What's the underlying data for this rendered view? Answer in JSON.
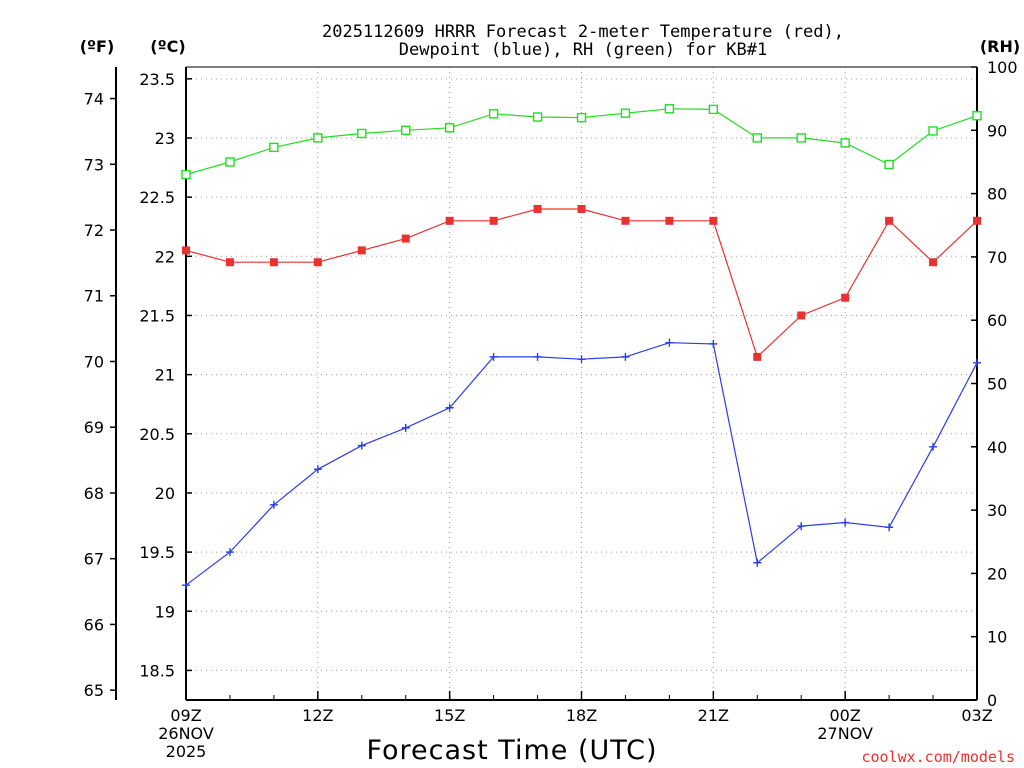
{
  "chart_data": {
    "type": "line",
    "title_line1": "2025112609 HRRR Forecast 2-meter Temperature (red),",
    "title_line2": "Dewpoint (blue), RH (green) for KB#1",
    "xlabel": "Forecast Time (UTC)",
    "credit": "coolwx.com/models",
    "axis_labels": {
      "fahrenheit": "(ºF)",
      "celsius": "(ºC)",
      "rh": "(RH)"
    },
    "x": [
      0,
      1,
      2,
      3,
      4,
      5,
      6,
      7,
      8,
      9,
      10,
      11,
      12,
      13,
      14,
      15,
      16,
      17,
      18
    ],
    "xlim": [
      0,
      18
    ],
    "x_ticks": [
      {
        "x": 0,
        "lines": [
          "09Z",
          "26NOV",
          "2025"
        ]
      },
      {
        "x": 3,
        "lines": [
          "12Z"
        ]
      },
      {
        "x": 6,
        "lines": [
          "15Z"
        ]
      },
      {
        "x": 9,
        "lines": [
          "18Z"
        ]
      },
      {
        "x": 12,
        "lines": [
          "21Z"
        ]
      },
      {
        "x": 15,
        "lines": [
          "00Z",
          "27NOV"
        ]
      },
      {
        "x": 18,
        "lines": [
          "03Z"
        ]
      }
    ],
    "celsius_axis": {
      "lim": [
        18.25,
        23.6
      ],
      "ticks": [
        "18.5",
        "19",
        "19.5",
        "20",
        "20.5",
        "21",
        "21.5",
        "22",
        "22.5",
        "23",
        "23.5"
      ]
    },
    "fahrenheit_axis": {
      "ticks": [
        "65",
        "66",
        "67",
        "68",
        "69",
        "70",
        "71",
        "72",
        "73",
        "74"
      ]
    },
    "rh_axis": {
      "lim": [
        0,
        100
      ],
      "ticks": [
        "0",
        "10",
        "20",
        "30",
        "40",
        "50",
        "60",
        "70",
        "80",
        "90",
        "100"
      ]
    },
    "series": [
      {
        "name": "Temperature",
        "axis": "celsius",
        "color": "#e8322f",
        "marker": "filled-square",
        "values": [
          22.05,
          21.95,
          21.95,
          21.95,
          22.05,
          22.15,
          22.3,
          22.3,
          22.4,
          22.4,
          22.3,
          22.3,
          22.3,
          21.15,
          21.5,
          21.65,
          22.3,
          21.95,
          22.3
        ]
      },
      {
        "name": "Dewpoint",
        "axis": "celsius",
        "color": "#2a3fe6",
        "marker": "plus",
        "values": [
          19.22,
          19.5,
          19.9,
          20.2,
          20.4,
          20.55,
          20.72,
          21.15,
          21.15,
          21.13,
          21.15,
          21.27,
          21.26,
          19.41,
          19.72,
          19.75,
          19.71,
          20.39,
          21.1
        ]
      },
      {
        "name": "RH",
        "axis": "rh",
        "color": "#22dd22",
        "marker": "open-square",
        "values": [
          83,
          85,
          87.3,
          88.8,
          89.5,
          90,
          90.4,
          92.6,
          92.1,
          92,
          92.7,
          93.4,
          93.3,
          88.8,
          88.8,
          88,
          84.6,
          89.9,
          92.3
        ]
      }
    ]
  }
}
